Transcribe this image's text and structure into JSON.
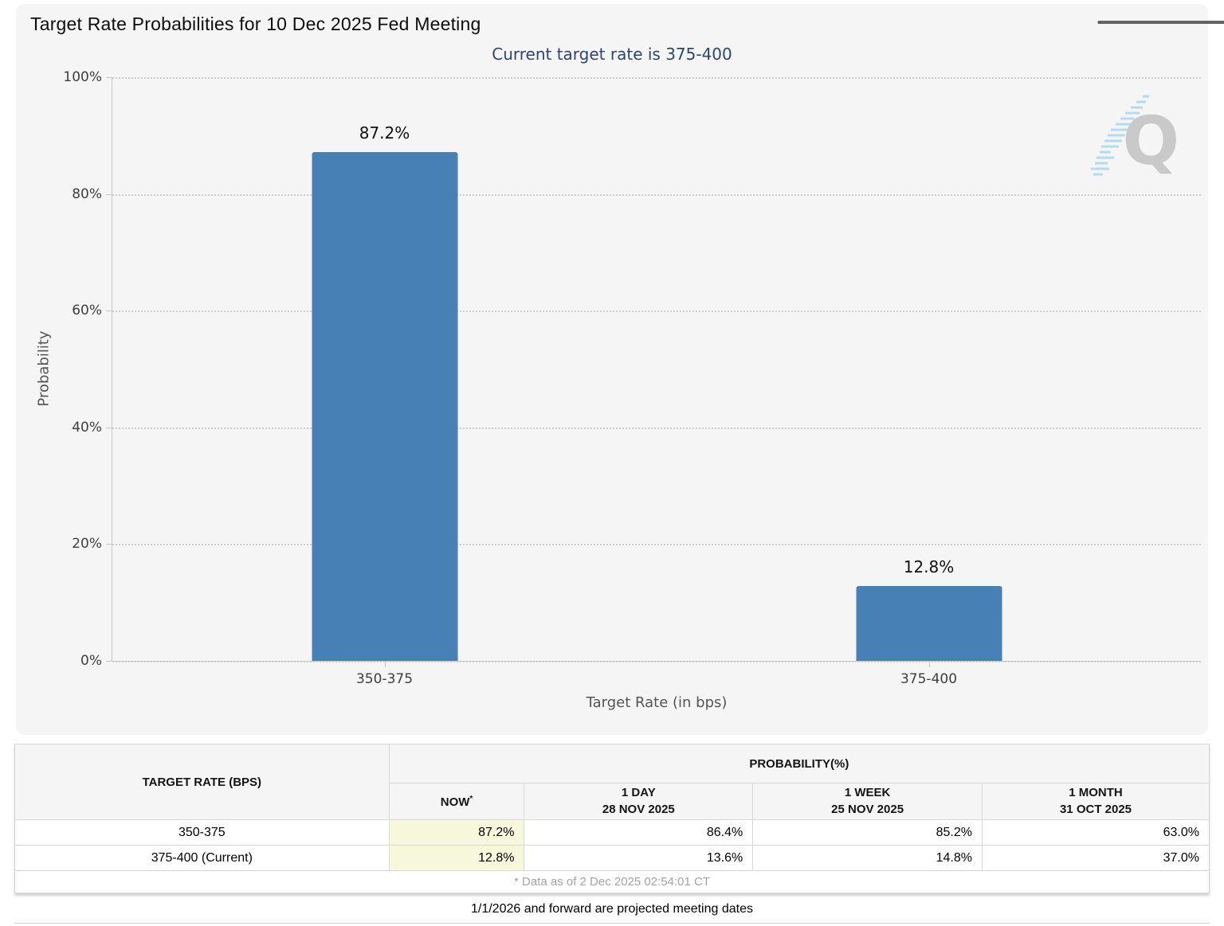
{
  "chart_data": {
    "type": "bar",
    "title": "Target Rate Probabilities for 10 Dec 2025 Fed Meeting",
    "subtitle": "Current target rate is 375-400",
    "categories": [
      "350-375",
      "375-400"
    ],
    "values": [
      87.2,
      12.8
    ],
    "value_labels": [
      "87.2%",
      "12.8%"
    ],
    "xlabel": "Target Rate (in bps)",
    "ylabel": "Probability",
    "ylim": [
      0,
      100
    ],
    "yticks": [
      0,
      20,
      40,
      60,
      80,
      100
    ],
    "ytick_labels": [
      "0%",
      "20%",
      "40%",
      "60%",
      "80%",
      "100%"
    ],
    "grid": "horizontal-dotted",
    "legend": "none",
    "bar_color": "#4680b4",
    "watermark_letter": "Q"
  },
  "table": {
    "row_header": "TARGET RATE (BPS)",
    "group_header": "PROBABILITY(%)",
    "now_label": "NOW",
    "now_asterisk": "*",
    "columns": [
      {
        "line1": "1 DAY",
        "line2": "28 NOV 2025"
      },
      {
        "line1": "1 WEEK",
        "line2": "25 NOV 2025"
      },
      {
        "line1": "1 MONTH",
        "line2": "31 OCT 2025"
      }
    ],
    "rows": [
      {
        "rate": "350-375",
        "now": "87.2%",
        "one_day": "86.4%",
        "one_week": "85.2%",
        "one_month": "63.0%"
      },
      {
        "rate": "375-400 (Current)",
        "now": "12.8%",
        "one_day": "13.6%",
        "one_week": "14.8%",
        "one_month": "37.0%"
      }
    ],
    "footnote": "* Data as of 2 Dec 2025 02:54:01 CT"
  },
  "footer": {
    "projection_note": "1/1/2026 and forward are projected meeting dates"
  },
  "colors": {
    "bar": "#4680b4",
    "subtitle_text": "#2f4471",
    "now_column_highlight": "#f7f7dc"
  }
}
